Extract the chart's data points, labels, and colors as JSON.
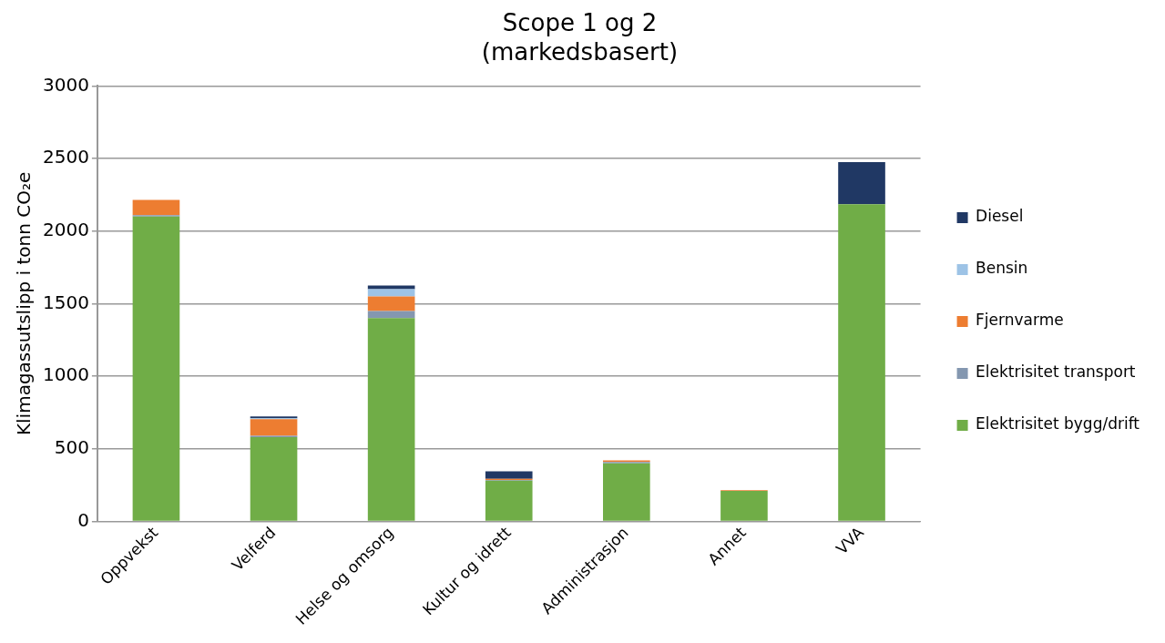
{
  "chart_data": {
    "type": "bar",
    "title": "Scope 1 og 2\n(markedsbasert)",
    "ylabel": "Klimagassutslipp i tonn CO₂e",
    "categories": [
      "Oppvekst",
      "Velferd",
      "Helse og omsorg",
      "Kultur og idrett",
      "Administrasjon",
      "Annet",
      "VVA"
    ],
    "stacked": true,
    "series": [
      {
        "name": "Elektrisitet bygg/drift",
        "color": "#70ad47",
        "values": [
          2100,
          580,
          1400,
          280,
          400,
          210,
          2185
        ]
      },
      {
        "name": "Elektrisitet transport",
        "color": "#8497b0",
        "values": [
          10,
          10,
          50,
          5,
          10,
          0,
          0
        ]
      },
      {
        "name": "Fjernvarme",
        "color": "#ed7d31",
        "values": [
          105,
          115,
          100,
          8,
          10,
          5,
          0
        ]
      },
      {
        "name": "Bensin",
        "color": "#9dc3e6",
        "values": [
          0,
          5,
          50,
          0,
          0,
          0,
          0
        ]
      },
      {
        "name": "Diesel",
        "color": "#203864",
        "values": [
          0,
          13,
          25,
          52,
          null,
          0,
          290
        ]
      }
    ],
    "ylim": [
      0,
      3000
    ],
    "yticks": [
      0,
      500,
      1000,
      1500,
      2000,
      2500,
      3000
    ],
    "grid": "y",
    "legend": "right"
  }
}
